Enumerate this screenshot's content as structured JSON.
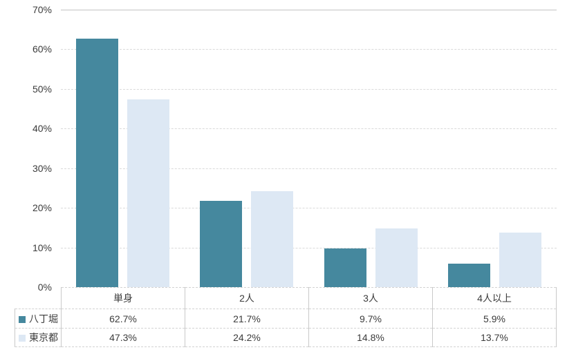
{
  "chart_data": {
    "type": "bar",
    "title": "",
    "xlabel": "",
    "ylabel": "",
    "categories": [
      "単身",
      "2人",
      "3人",
      "4人以上"
    ],
    "series": [
      {
        "name": "八丁堀",
        "color": "#45889e",
        "values": [
          62.7,
          21.7,
          9.7,
          5.9
        ],
        "display_values": [
          "62.7%",
          "21.7%",
          "9.7%",
          "5.9%"
        ]
      },
      {
        "name": "東京都",
        "color": "#dde8f4",
        "values": [
          47.3,
          24.2,
          14.8,
          13.7
        ],
        "display_values": [
          "47.3%",
          "24.2%",
          "14.8%",
          "13.7%"
        ]
      }
    ],
    "ylim": [
      0,
      70
    ],
    "ytick_step": 10,
    "ytick_labels": [
      "0%",
      "10%",
      "20%",
      "30%",
      "40%",
      "50%",
      "60%",
      "70%"
    ],
    "grid": true,
    "legend_position": "data-table-left",
    "data_table_shown": true
  },
  "colors": {
    "background": "#ffffff",
    "gridline": "#d9d9d9",
    "gridline_top": "#c3c3c3",
    "table_border": "#c9c9c9",
    "text": "#3b3b3b",
    "series_1": "#45889e",
    "series_2": "#dde8f4"
  }
}
